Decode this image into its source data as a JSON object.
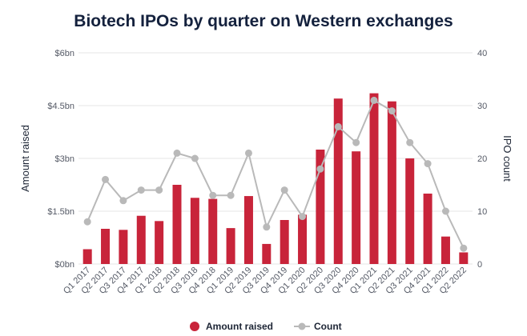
{
  "chart_data": {
    "type": "bar+line",
    "title": "Biotech IPOs by quarter on Western exchanges",
    "categories": [
      "Q1 2017",
      "Q2 2017",
      "Q3 2017",
      "Q4 2017",
      "Q1 2018",
      "Q2 2018",
      "Q3 2018",
      "Q4 2018",
      "Q1 2019",
      "Q2 2019",
      "Q3 2019",
      "Q4 2019",
      "Q1 2020",
      "Q2 2020",
      "Q3 2020",
      "Q4 2020",
      "Q1 2021",
      "Q2 2021",
      "Q3 2021",
      "Q4 2021",
      "Q1 2022",
      "Q2 2022"
    ],
    "series": [
      {
        "name": "Amount raised",
        "type": "bar",
        "axis": "left",
        "unit": "$bn",
        "color": "#c8243a",
        "values": [
          0.42,
          1.0,
          0.97,
          1.37,
          1.22,
          2.25,
          1.88,
          1.85,
          1.02,
          1.93,
          0.57,
          1.25,
          1.4,
          3.25,
          4.7,
          3.2,
          4.85,
          4.62,
          3.0,
          2.0,
          0.78,
          0.33
        ]
      },
      {
        "name": "Count",
        "type": "line",
        "axis": "right",
        "color": "#b9b9b9",
        "values": [
          8,
          16,
          12,
          14,
          14,
          21,
          20,
          13,
          13,
          21,
          7,
          14,
          9,
          18,
          26,
          23,
          31,
          29,
          23,
          19,
          10,
          3
        ]
      }
    ],
    "y_left": {
      "label": "Amount raised",
      "min": 0,
      "max": 6,
      "ticks": [
        0,
        1.5,
        3,
        4.5,
        6
      ],
      "tick_labels": [
        "$0bn",
        "$1.5bn",
        "$3bn",
        "$4.5bn",
        "$6bn"
      ]
    },
    "y_right": {
      "label": "IPO count",
      "min": 0,
      "max": 40,
      "ticks": [
        0,
        10,
        20,
        30,
        40
      ],
      "tick_labels": [
        "0",
        "10",
        "20",
        "30",
        "40"
      ]
    },
    "legend": {
      "position": "bottom",
      "items": [
        {
          "label": "Amount raised",
          "marker": "circle",
          "color": "#c8243a"
        },
        {
          "label": "Count",
          "marker": "line-dot",
          "color": "#b9b9b9"
        }
      ]
    },
    "grid": true
  },
  "colors": {
    "title": "#14213d",
    "bar": "#c8243a",
    "line": "#b9b9b9",
    "grid": "#e6e6e6",
    "tick": "#555a66"
  }
}
